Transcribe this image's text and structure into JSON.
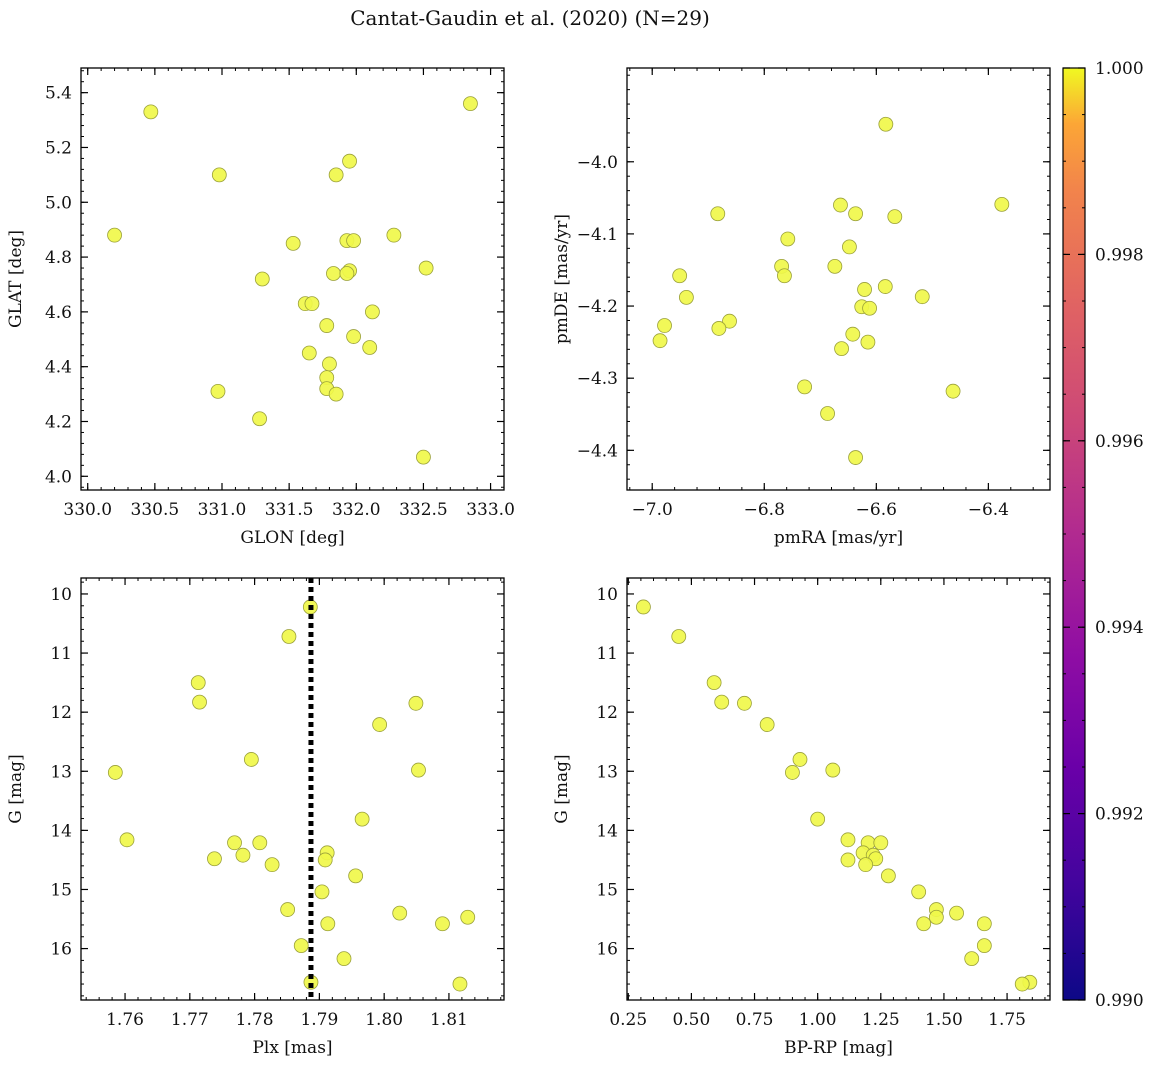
{
  "figure": {
    "title": "Cantat-Gaudin et al. (2020) (N=29)"
  },
  "colorbar": {
    "min": 0.99,
    "max": 1.0,
    "ticks": [
      0.99,
      0.992,
      0.994,
      0.996,
      0.998,
      1.0
    ],
    "tick_labels": [
      "0.990",
      "0.992",
      "0.994",
      "0.996",
      "0.998",
      "1.000"
    ],
    "colormap": "plasma"
  },
  "chart_data": [
    {
      "type": "scatter",
      "panel": "top-left",
      "xlabel": "GLON [deg]",
      "ylabel": "GLAT [deg]",
      "xlim": [
        329.95,
        333.1
      ],
      "ylim": [
        3.95,
        5.49
      ],
      "y_inverted": false,
      "xticks": [
        330.0,
        330.5,
        331.0,
        331.5,
        332.0,
        332.5,
        333.0
      ],
      "xtick_labels": [
        "330.0",
        "330.5",
        "331.0",
        "331.5",
        "332.0",
        "332.5",
        "333.0"
      ],
      "yticks": [
        4.0,
        4.2,
        4.4,
        4.6,
        4.8,
        5.0,
        5.2,
        5.4
      ],
      "ytick_labels": [
        "4.0",
        "4.2",
        "4.4",
        "4.6",
        "4.8",
        "5.0",
        "5.2",
        "5.4"
      ],
      "x": [
        332.85,
        330.47,
        331.95,
        331.85,
        330.98,
        330.2,
        332.28,
        331.93,
        331.98,
        331.53,
        332.52,
        331.83,
        331.95,
        331.93,
        331.3,
        331.62,
        331.67,
        332.12,
        331.78,
        331.98,
        332.1,
        331.65,
        331.8,
        331.78,
        330.97,
        331.78,
        331.85,
        331.28,
        332.5
      ],
      "y": [
        5.36,
        5.33,
        5.15,
        5.1,
        5.1,
        4.88,
        4.88,
        4.86,
        4.86,
        4.85,
        4.76,
        4.74,
        4.75,
        4.74,
        4.72,
        4.63,
        4.63,
        4.6,
        4.55,
        4.51,
        4.47,
        4.45,
        4.41,
        4.36,
        4.31,
        4.32,
        4.3,
        4.21,
        4.07
      ],
      "membership": [
        1.0,
        1.0,
        1.0,
        1.0,
        1.0,
        1.0,
        1.0,
        1.0,
        1.0,
        1.0,
        1.0,
        1.0,
        1.0,
        1.0,
        1.0,
        1.0,
        1.0,
        1.0,
        1.0,
        1.0,
        1.0,
        1.0,
        1.0,
        1.0,
        1.0,
        1.0,
        1.0,
        1.0,
        1.0
      ]
    },
    {
      "type": "scatter",
      "panel": "top-right",
      "xlabel": "pmRA [mas/yr]",
      "ylabel": "pmDE [mas/yr]",
      "xlim": [
        -7.045,
        -6.29
      ],
      "ylim": [
        -4.455,
        -3.87
      ],
      "y_inverted": false,
      "xticks": [
        -7.0,
        -6.8,
        -6.6,
        -6.4
      ],
      "xtick_labels": [
        "−7.0",
        "−6.8",
        "−6.6",
        "−6.4"
      ],
      "yticks": [
        -4.4,
        -4.3,
        -4.2,
        -4.1,
        -4.0
      ],
      "ytick_labels": [
        "−4.4",
        "−4.3",
        "−4.2",
        "−4.1",
        "−4.0"
      ],
      "x": [
        -6.583,
        -6.664,
        -6.637,
        -6.376,
        -6.567,
        -6.883,
        -6.758,
        -6.648,
        -6.769,
        -6.674,
        -6.764,
        -6.951,
        -6.584,
        -6.621,
        -6.939,
        -6.518,
        -6.626,
        -6.612,
        -6.978,
        -6.862,
        -6.881,
        -6.642,
        -6.986,
        -6.615,
        -6.662,
        -6.728,
        -6.687,
        -6.463,
        -6.637
      ],
      "y": [
        -3.948,
        -4.06,
        -4.072,
        -4.059,
        -4.076,
        -4.072,
        -4.107,
        -4.118,
        -4.145,
        -4.145,
        -4.158,
        -4.158,
        -4.173,
        -4.177,
        -4.188,
        -4.187,
        -4.201,
        -4.203,
        -4.227,
        -4.221,
        -4.231,
        -4.239,
        -4.248,
        -4.25,
        -4.259,
        -4.312,
        -4.349,
        -4.318,
        -4.41
      ],
      "membership": [
        1.0,
        1.0,
        1.0,
        1.0,
        1.0,
        1.0,
        1.0,
        1.0,
        1.0,
        1.0,
        1.0,
        1.0,
        1.0,
        1.0,
        1.0,
        1.0,
        1.0,
        1.0,
        1.0,
        1.0,
        1.0,
        1.0,
        1.0,
        1.0,
        1.0,
        1.0,
        1.0,
        1.0,
        1.0
      ]
    },
    {
      "type": "scatter",
      "panel": "bottom-left",
      "xlabel": "Plx [mas]",
      "ylabel": "G [mag]",
      "xlim": [
        1.7532,
        1.8185
      ],
      "ylim": [
        16.87,
        9.73
      ],
      "y_inverted": true,
      "xticks": [
        1.76,
        1.77,
        1.78,
        1.79,
        1.8,
        1.81
      ],
      "xtick_labels": [
        "1.76",
        "1.77",
        "1.78",
        "1.79",
        "1.80",
        "1.81"
      ],
      "yticks": [
        10,
        11,
        12,
        13,
        14,
        15,
        16
      ],
      "ytick_labels": [
        "10",
        "11",
        "12",
        "13",
        "14",
        "15",
        "16"
      ],
      "vline": {
        "x": 1.7887,
        "style": "dotted"
      },
      "x": [
        1.7886,
        1.7853,
        1.7713,
        1.7715,
        1.8049,
        1.7993,
        1.7795,
        1.7585,
        1.8053,
        1.7966,
        1.7603,
        1.7912,
        1.7808,
        1.7769,
        1.7738,
        1.7782,
        1.7909,
        1.7827,
        1.7956,
        1.7904,
        1.7851,
        1.8024,
        1.8129,
        1.7913,
        1.809,
        1.7872,
        1.7938,
        1.7887,
        1.8117
      ],
      "y": [
        10.22,
        10.72,
        11.5,
        11.83,
        11.85,
        12.21,
        12.8,
        13.02,
        12.98,
        13.81,
        14.16,
        14.38,
        14.21,
        14.21,
        14.48,
        14.42,
        14.5,
        14.58,
        14.77,
        15.04,
        15.34,
        15.4,
        15.47,
        15.58,
        15.58,
        15.95,
        16.17,
        16.57,
        16.6
      ],
      "membership": [
        1.0,
        1.0,
        1.0,
        1.0,
        1.0,
        1.0,
        1.0,
        1.0,
        1.0,
        1.0,
        1.0,
        1.0,
        1.0,
        1.0,
        1.0,
        1.0,
        1.0,
        1.0,
        1.0,
        1.0,
        1.0,
        1.0,
        1.0,
        1.0,
        1.0,
        1.0,
        1.0,
        1.0,
        1.0
      ]
    },
    {
      "type": "scatter",
      "panel": "bottom-right",
      "xlabel": "BP-RP [mag]",
      "ylabel": "G [mag]",
      "xlim": [
        0.245,
        1.92
      ],
      "ylim": [
        16.87,
        9.73
      ],
      "y_inverted": true,
      "xticks": [
        0.25,
        0.5,
        0.75,
        1.0,
        1.25,
        1.5,
        1.75
      ],
      "xtick_labels": [
        "0.25",
        "0.50",
        "0.75",
        "1.00",
        "1.25",
        "1.50",
        "1.75"
      ],
      "yticks": [
        10,
        11,
        12,
        13,
        14,
        15,
        16
      ],
      "ytick_labels": [
        "10",
        "11",
        "12",
        "13",
        "14",
        "15",
        "16"
      ],
      "x": [
        0.31,
        0.45,
        0.59,
        0.62,
        0.71,
        0.8,
        0.93,
        0.9,
        1.06,
        1.0,
        1.12,
        1.2,
        1.18,
        1.25,
        1.12,
        1.22,
        1.23,
        1.19,
        1.28,
        1.4,
        1.47,
        1.55,
        1.47,
        1.42,
        1.66,
        1.66,
        1.61,
        1.84,
        1.81
      ],
      "y": [
        10.22,
        10.72,
        11.5,
        11.83,
        11.85,
        12.21,
        12.8,
        13.02,
        12.98,
        13.81,
        14.16,
        14.21,
        14.38,
        14.21,
        14.5,
        14.42,
        14.48,
        14.58,
        14.77,
        15.04,
        15.34,
        15.4,
        15.47,
        15.58,
        15.58,
        15.95,
        16.17,
        16.57,
        16.6
      ],
      "membership": [
        1.0,
        1.0,
        1.0,
        1.0,
        1.0,
        1.0,
        1.0,
        1.0,
        1.0,
        1.0,
        1.0,
        1.0,
        1.0,
        1.0,
        1.0,
        1.0,
        1.0,
        1.0,
        1.0,
        1.0,
        1.0,
        1.0,
        1.0,
        1.0,
        1.0,
        1.0,
        1.0,
        1.0,
        1.0
      ]
    }
  ]
}
